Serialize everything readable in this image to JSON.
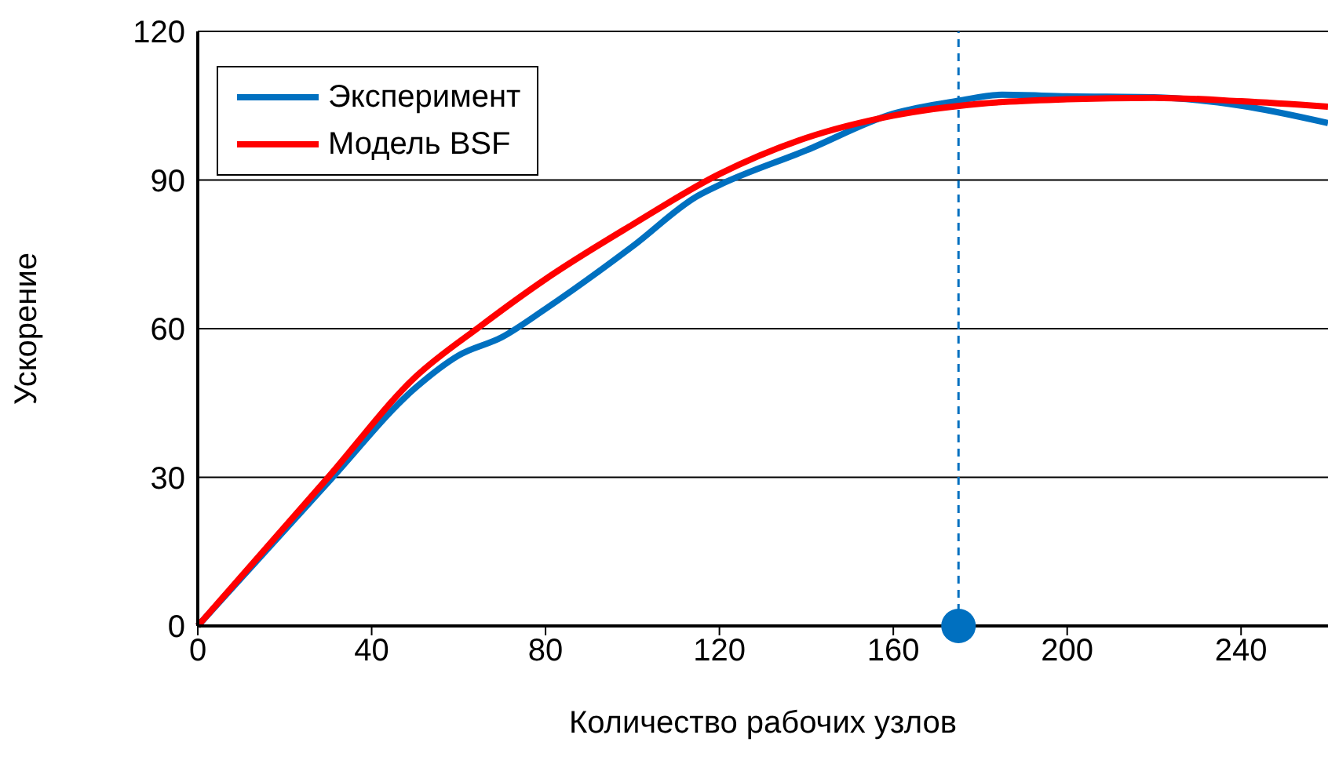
{
  "chart_data": {
    "type": "line",
    "xlabel": "Количество рабочих узлов",
    "ylabel": "Ускорение",
    "xlim": [
      0,
      260
    ],
    "ylim": [
      0,
      120
    ],
    "xticks": [
      0,
      40,
      80,
      120,
      160,
      200,
      240
    ],
    "yticks": [
      0,
      30,
      60,
      90,
      120
    ],
    "grid": "y",
    "legend": "top left",
    "marker": "none",
    "line_style": "solid",
    "series": [
      {
        "name": "Эксперимент",
        "color": "#0070c0",
        "x": [
          0,
          30,
          50,
          60,
          70,
          80,
          100,
          115,
          120,
          140,
          160,
          175,
          185,
          200,
          220,
          240,
          260
        ],
        "values": [
          0,
          29,
          48,
          54.6,
          58.3,
          64,
          76.6,
          86.8,
          89,
          96,
          103.4,
          106,
          107.2,
          106.9,
          106.7,
          105,
          101.5
        ]
      },
      {
        "name": "Модель BSF",
        "color": "#ff0000",
        "x": [
          0,
          30,
          50,
          65,
          80,
          100,
          120,
          140,
          160,
          180,
          200,
          220,
          240,
          260
        ],
        "values": [
          0,
          30,
          50.2,
          60.5,
          70,
          81,
          91.2,
          98.5,
          103,
          105.4,
          106.3,
          106.6,
          105.9,
          104.8
        ]
      },
      {
        "type": "scatter",
        "color": "#0070c0",
        "x": [
          175
        ],
        "values": [
          0
        ],
        "marker": "circle"
      }
    ],
    "ref_lines": [
      {
        "axis": "x",
        "value": 175,
        "color": "#0070c0",
        "line_style": "dashed"
      }
    ]
  }
}
